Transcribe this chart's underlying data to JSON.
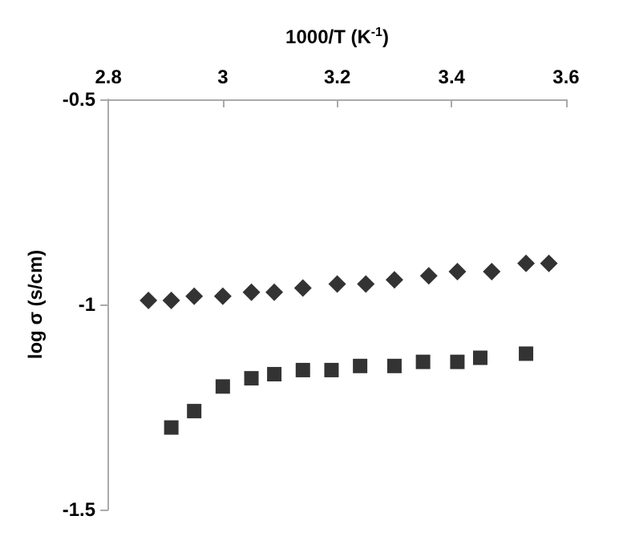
{
  "chart_data": {
    "type": "scatter",
    "xlabel": "1000/T (K$^{-1}$)",
    "ylabel": "log σ (s/cm)",
    "xlim": [
      2.8,
      3.6
    ],
    "xticks": [
      2.8,
      3,
      3.2,
      3.4,
      3.6
    ],
    "ylim": [
      -1.5,
      -0.5
    ],
    "yticks": [
      -1.5,
      -1,
      -0.5
    ],
    "grid": false,
    "series": [
      {
        "marker": "diamond",
        "color": "#000000",
        "x": [
          2.87,
          2.91,
          2.95,
          3.0,
          3.05,
          3.09,
          3.14,
          3.2,
          3.25,
          3.3,
          3.36,
          3.41,
          3.47,
          3.53,
          3.57
        ],
        "values": [
          -0.99,
          -0.99,
          -0.98,
          -0.98,
          -0.97,
          -0.97,
          -0.96,
          -0.95,
          -0.95,
          -0.94,
          -0.93,
          -0.92,
          -0.92,
          -0.9,
          -0.9
        ]
      },
      {
        "marker": "square",
        "color": "#000000",
        "x": [
          2.91,
          2.95,
          3.0,
          3.05,
          3.09,
          3.14,
          3.19,
          3.24,
          3.3,
          3.35,
          3.41,
          3.45,
          3.53
        ],
        "values": [
          -1.3,
          -1.26,
          -1.2,
          -1.18,
          -1.17,
          -1.16,
          -1.16,
          -1.15,
          -1.15,
          -1.14,
          -1.14,
          -1.13,
          -1.12
        ]
      }
    ]
  }
}
